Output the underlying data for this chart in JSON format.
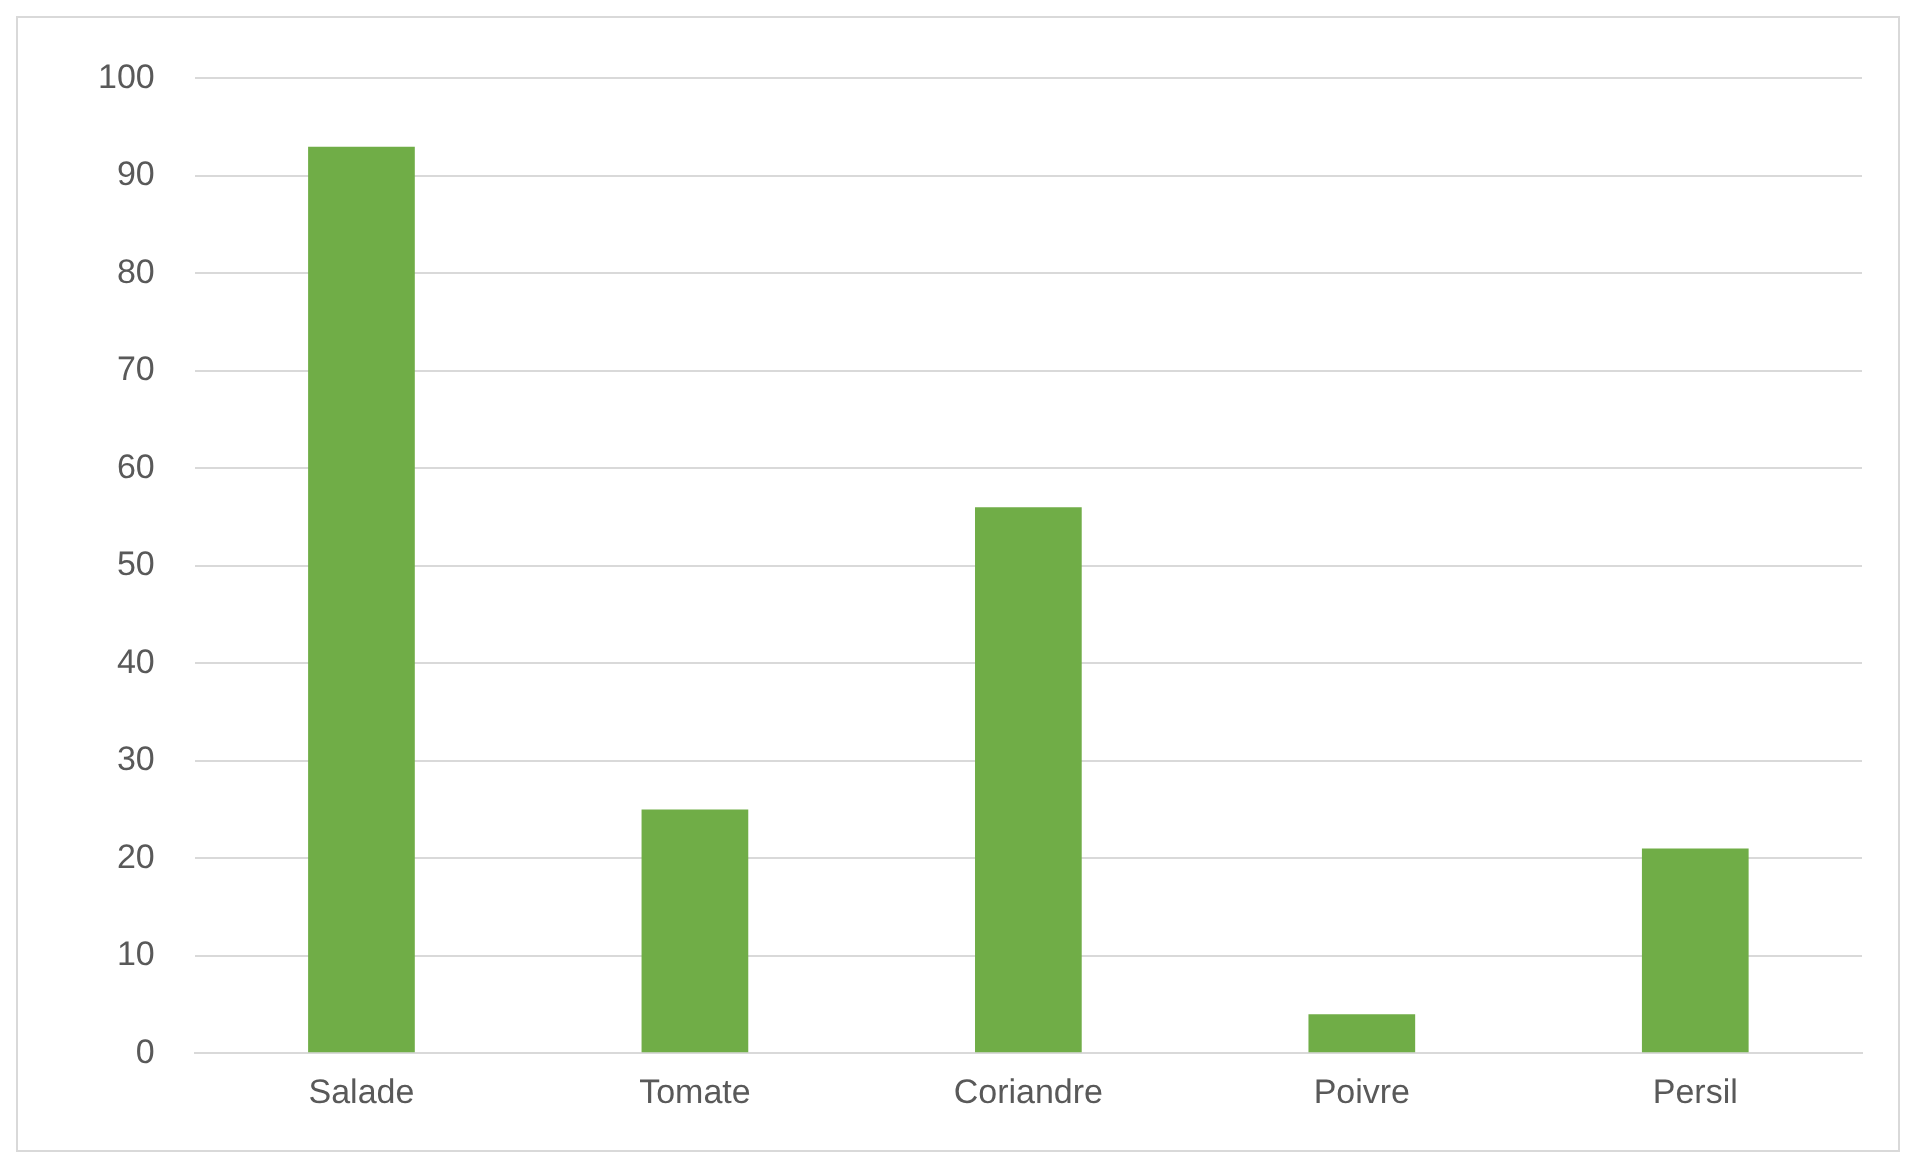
{
  "chart_data": {
    "type": "bar",
    "categories": [
      "Salade",
      "Tomate",
      "Coriandre",
      "Poivre",
      "Persil"
    ],
    "values": [
      93,
      25,
      56,
      4,
      21
    ],
    "color": "#70ad47",
    "ylim": [
      0,
      100
    ],
    "yticks": [
      0,
      10,
      20,
      30,
      40,
      50,
      60,
      70,
      80,
      90,
      100
    ],
    "grid": "y"
  }
}
